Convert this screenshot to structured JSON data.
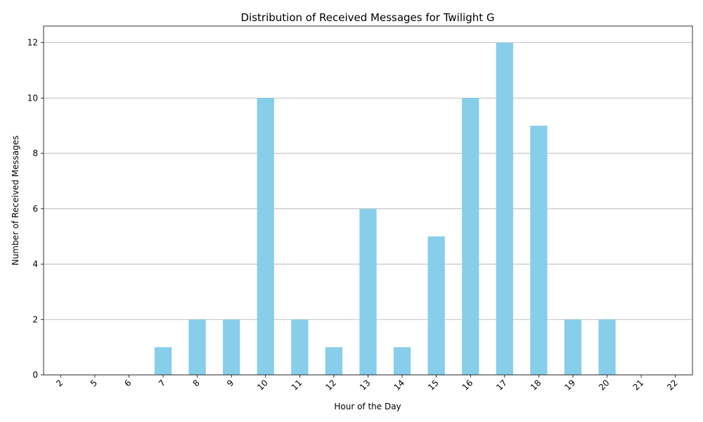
{
  "chart_data": {
    "type": "bar",
    "title": "Distribution of Received Messages for Twilight G",
    "xlabel": "Hour of the Day",
    "ylabel": "Number of Received Messages",
    "categories": [
      "2",
      "5",
      "6",
      "7",
      "8",
      "9",
      "10",
      "11",
      "12",
      "13",
      "14",
      "15",
      "16",
      "17",
      "18",
      "19",
      "20",
      "21",
      "22"
    ],
    "values": [
      0,
      0,
      0,
      1,
      2,
      2,
      10,
      2,
      1,
      6,
      1,
      5,
      10,
      12,
      9,
      2,
      2,
      0,
      0
    ],
    "ylim": [
      0,
      12.6
    ],
    "yticks": [
      0,
      2,
      4,
      6,
      8,
      10,
      12
    ],
    "grid": "y",
    "bar_color": "#87CEEB",
    "x_tick_rotation": 45
  }
}
